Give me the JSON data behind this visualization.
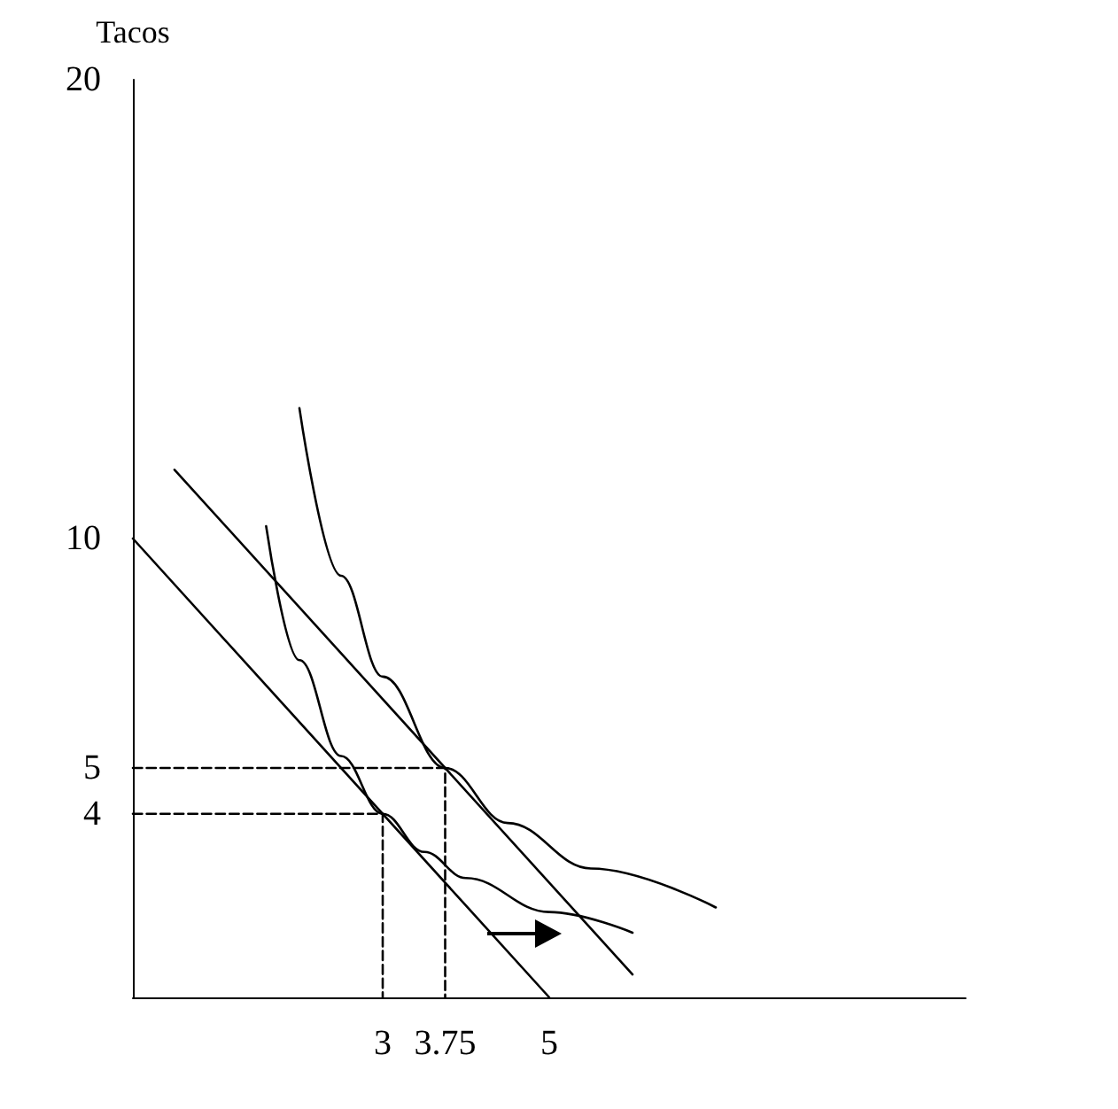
{
  "chart_data": {
    "type": "line",
    "ylabel": "Tacos",
    "xlim": [
      0,
      10
    ],
    "ylim": [
      0,
      20
    ],
    "xticks": [
      3,
      3.75,
      5
    ],
    "yticks": [
      4,
      5,
      10,
      20
    ],
    "grid": false,
    "marker": "none",
    "series": [
      {
        "color": "#000000",
        "x": [
          0,
          5
        ],
        "values": [
          10,
          0
        ]
      },
      {
        "color": "#000000",
        "x": [
          0.5,
          6
        ],
        "values": [
          11.5,
          0.5
        ]
      },
      {
        "color": "#000000",
        "x": [
          1.6,
          2,
          2.5,
          3,
          3.5,
          4,
          5,
          6
        ],
        "values": [
          10.27,
          7.35,
          5.26,
          4,
          3.17,
          2.6,
          1.86,
          1.41
        ]
      },
      {
        "color": "#000000",
        "x": [
          2,
          2.5,
          3,
          3.75,
          4.5,
          5.5,
          7
        ],
        "values": [
          12.84,
          9.19,
          6.99,
          5,
          3.8,
          2.81,
          1.96
        ]
      },
      {
        "color": "#000000",
        "line_style": "dashed",
        "x": [
          0,
          3,
          3
        ],
        "values": [
          4,
          4,
          0
        ]
      },
      {
        "color": "#000000",
        "line_style": "dashed",
        "x": [
          0,
          3.75,
          3.75
        ],
        "values": [
          5,
          5,
          0
        ]
      }
    ]
  }
}
